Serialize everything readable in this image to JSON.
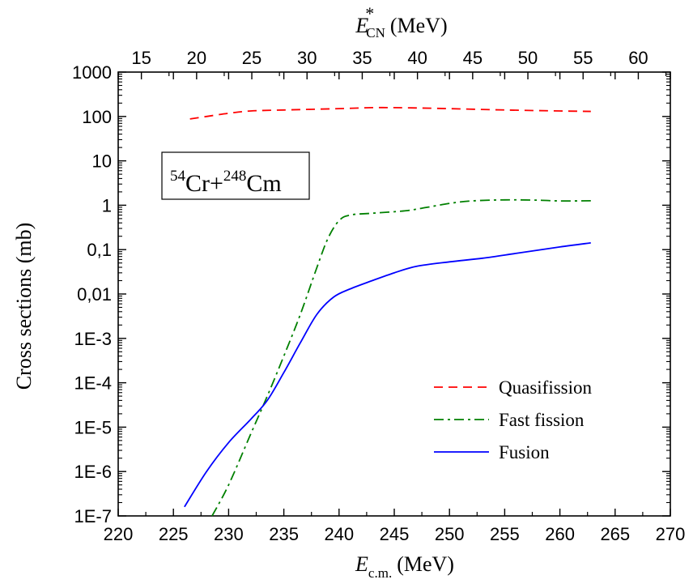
{
  "chart_data": {
    "type": "line",
    "xlabel": {
      "symbol": "E",
      "subscript": "c.m.",
      "unit": "(MeV)"
    },
    "x2label": {
      "symbol": "E",
      "superscript": "*",
      "subscript": "CN",
      "unit": "(MeV)"
    },
    "ylabel": "Cross sections (mb)",
    "xlim": [
      220,
      270
    ],
    "x2lim": [
      12.9,
      62.9
    ],
    "y_scale": "log",
    "ylim": [
      1e-07,
      1000
    ],
    "xticks": [
      "220",
      "225",
      "230",
      "235",
      "240",
      "245",
      "250",
      "255",
      "260",
      "265",
      "270"
    ],
    "x2ticks": [
      "15",
      "20",
      "25",
      "30",
      "35",
      "40",
      "45",
      "50",
      "55",
      "60"
    ],
    "yticks": [
      "1E-7",
      "1E-6",
      "1E-5",
      "1E-4",
      "1E-3",
      "0,01",
      "0,1",
      "1",
      "10",
      "100",
      "1000"
    ],
    "annotation": {
      "m1": "54",
      "e1": "Cr+",
      "m2": "248",
      "e2": "Cm"
    },
    "legend_position": "bottom-right",
    "series": [
      {
        "name": "Quasifission",
        "color": "#ff0000",
        "style": "dashed",
        "points": [
          [
            226.5,
            88
          ],
          [
            228,
            100
          ],
          [
            230,
            118
          ],
          [
            232,
            133
          ],
          [
            235,
            140
          ],
          [
            240,
            150
          ],
          [
            243,
            158
          ],
          [
            246,
            157
          ],
          [
            250,
            150
          ],
          [
            255,
            140
          ],
          [
            260,
            133
          ],
          [
            262.8,
            130
          ]
        ]
      },
      {
        "name": "Fast fission",
        "color": "#008000",
        "style": "dash-dot",
        "points": [
          [
            228.5,
            1e-07
          ],
          [
            230,
            5e-07
          ],
          [
            232,
            7e-06
          ],
          [
            233.5,
            5e-05
          ],
          [
            235,
            0.0004
          ],
          [
            236.5,
            0.0035
          ],
          [
            238,
            0.04
          ],
          [
            239,
            0.18
          ],
          [
            240,
            0.45
          ],
          [
            241,
            0.6
          ],
          [
            243,
            0.66
          ],
          [
            246,
            0.75
          ],
          [
            248,
            0.9
          ],
          [
            250,
            1.1
          ],
          [
            252,
            1.25
          ],
          [
            255,
            1.32
          ],
          [
            258,
            1.3
          ],
          [
            260,
            1.25
          ],
          [
            262.8,
            1.26
          ]
        ]
      },
      {
        "name": "Fusion",
        "color": "#0000ff",
        "style": "solid",
        "points": [
          [
            226,
            1.6e-07
          ],
          [
            228,
            1e-06
          ],
          [
            230,
            4.5e-06
          ],
          [
            232,
            1.5e-05
          ],
          [
            233.5,
            4e-05
          ],
          [
            235,
            0.00017
          ],
          [
            236.5,
            0.0008
          ],
          [
            238,
            0.0035
          ],
          [
            239.5,
            0.0085
          ],
          [
            241,
            0.013
          ],
          [
            243,
            0.02
          ],
          [
            245,
            0.03
          ],
          [
            247,
            0.042
          ],
          [
            250,
            0.053
          ],
          [
            253,
            0.064
          ],
          [
            256,
            0.082
          ],
          [
            260,
            0.115
          ],
          [
            262.8,
            0.142
          ]
        ]
      }
    ]
  }
}
